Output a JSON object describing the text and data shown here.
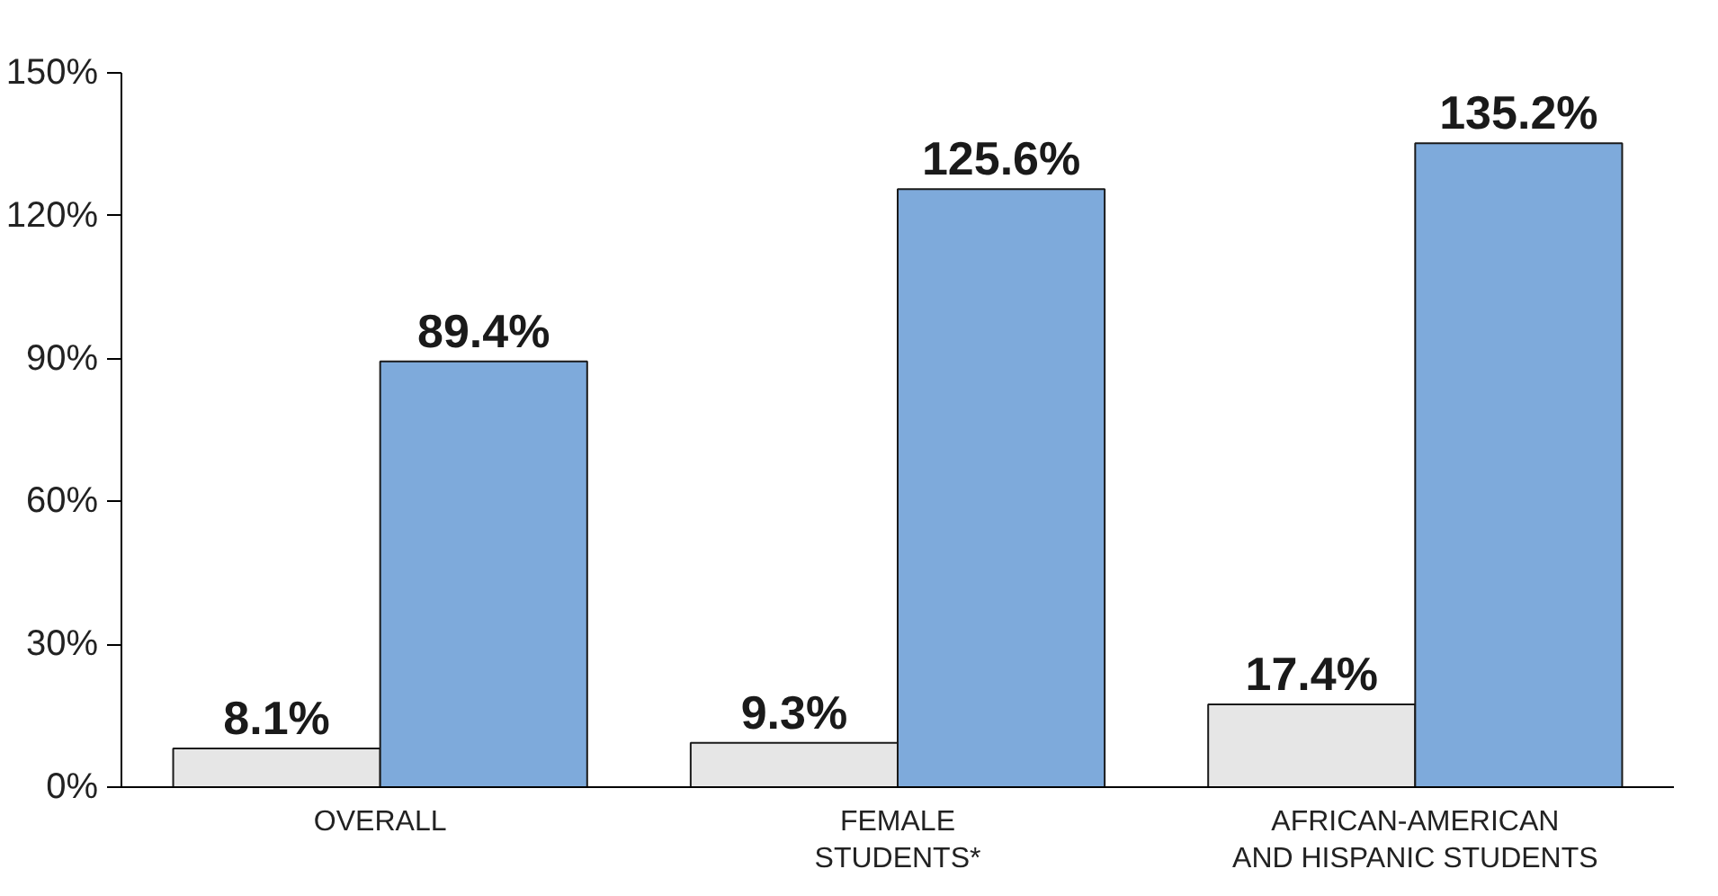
{
  "chart_data": {
    "type": "bar",
    "categories": [
      "OVERALL",
      "FEMALE\nSTUDENTS*",
      "AFRICAN-AMERICAN\nAND HISPANIC STUDENTS"
    ],
    "series": [
      {
        "color": "#e6e6e6",
        "values": [
          8.1,
          9.3,
          17.4
        ],
        "value_labels": [
          "8.1%",
          "9.3%",
          "17.4%"
        ]
      },
      {
        "color": "#7eaadb",
        "values": [
          89.4,
          125.6,
          135.2
        ],
        "value_labels": [
          "89.4%",
          "125.6%",
          "135.2%"
        ]
      }
    ],
    "ylim": [
      0,
      150
    ],
    "yticks": [
      {
        "value": 0,
        "label": "0%"
      },
      {
        "value": 30,
        "label": "30%"
      },
      {
        "value": 60,
        "label": "60%"
      },
      {
        "value": 90,
        "label": "90%"
      },
      {
        "value": 120,
        "label": "120%"
      },
      {
        "value": 150,
        "label": "150%"
      }
    ],
    "grid": false
  }
}
